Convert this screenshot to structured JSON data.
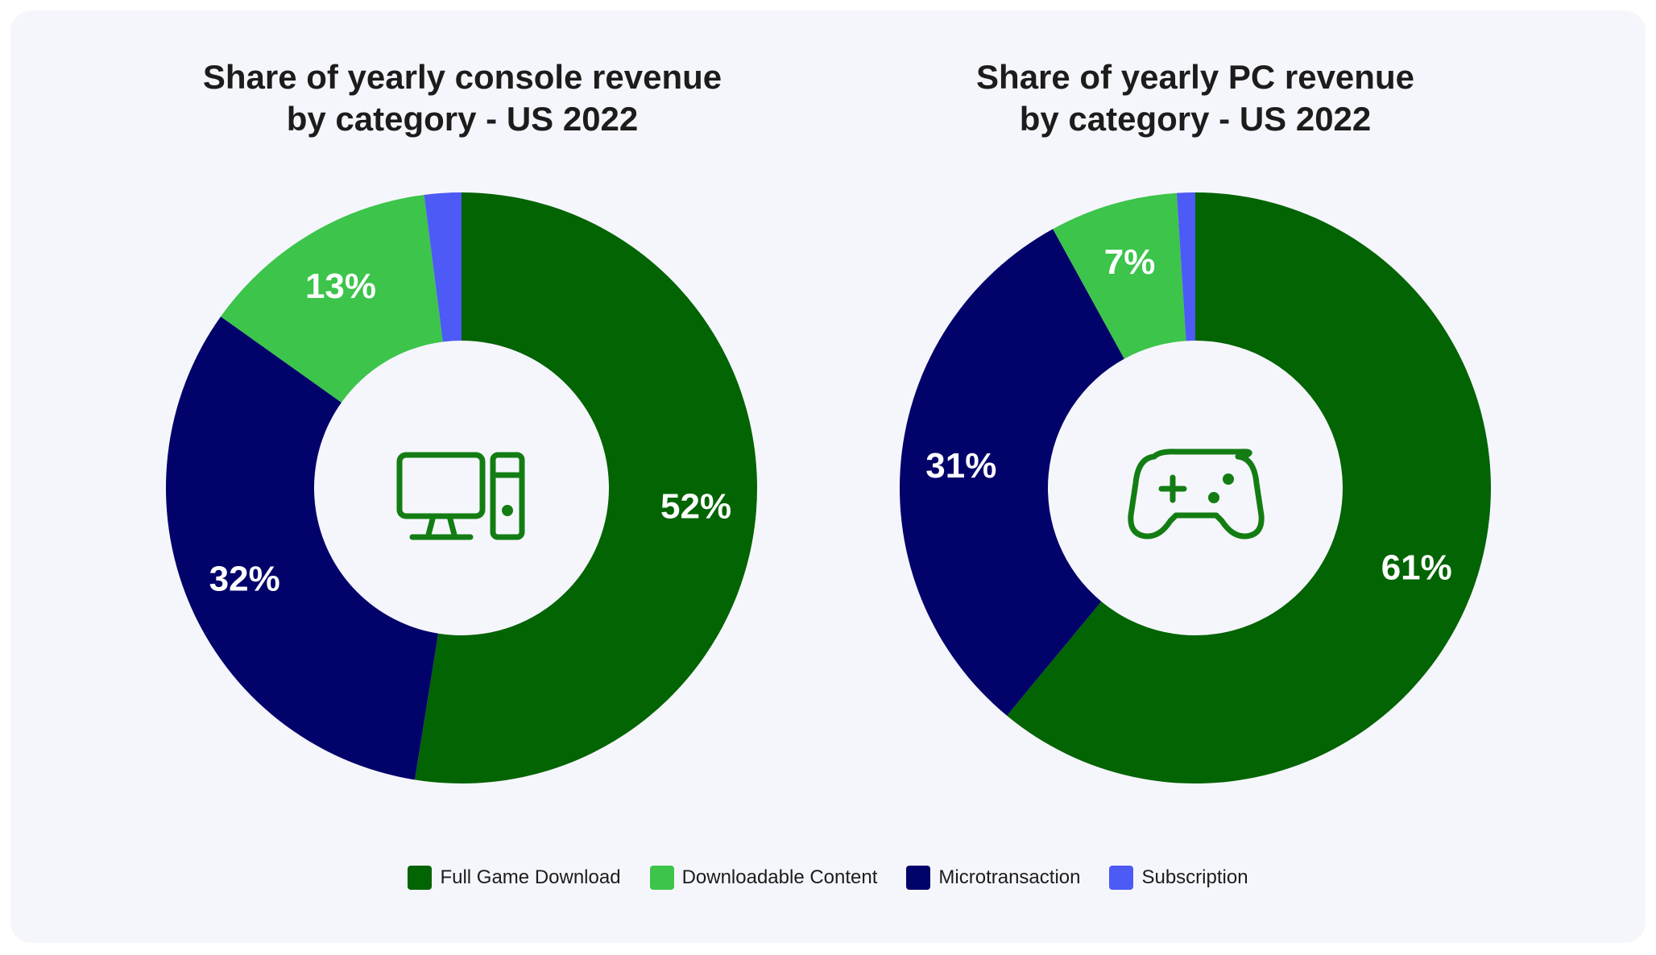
{
  "colors": {
    "full_game_download": "#026402",
    "downloadable_content": "#3cc44b",
    "microtransaction": "#02026b",
    "subscription": "#4d5af5",
    "label": "#ffffff",
    "icon": "#137d13"
  },
  "legend": [
    {
      "label": "Full Game Download",
      "color": "#026402"
    },
    {
      "label": "Downloadable Content",
      "color": "#3cc44b"
    },
    {
      "label": "Microtransaction",
      "color": "#02026b"
    },
    {
      "label": "Subscription",
      "color": "#4d5af5"
    }
  ],
  "chart_data": [
    {
      "type": "pie",
      "title_lines": [
        "Share of yearly console revenue",
        "by category - US 2022"
      ],
      "center_icon": "desktop-computer-icon",
      "slices": [
        {
          "name": "Full Game Download",
          "value": 52,
          "label": "52%"
        },
        {
          "name": "Microtransaction",
          "value": 32,
          "label": "32%"
        },
        {
          "name": "Downloadable Content",
          "value": 13,
          "label": "13%"
        },
        {
          "name": "Subscription",
          "value": 2,
          "label": ""
        }
      ]
    },
    {
      "type": "pie",
      "title_lines": [
        "Share of yearly PC revenue",
        "by category - US 2022"
      ],
      "center_icon": "game-controller-icon",
      "slices": [
        {
          "name": "Full Game Download",
          "value": 61,
          "label": "61%"
        },
        {
          "name": "Microtransaction",
          "value": 31,
          "label": "31%"
        },
        {
          "name": "Downloadable Content",
          "value": 7,
          "label": "7%"
        },
        {
          "name": "Subscription",
          "value": 1,
          "label": ""
        }
      ]
    }
  ]
}
